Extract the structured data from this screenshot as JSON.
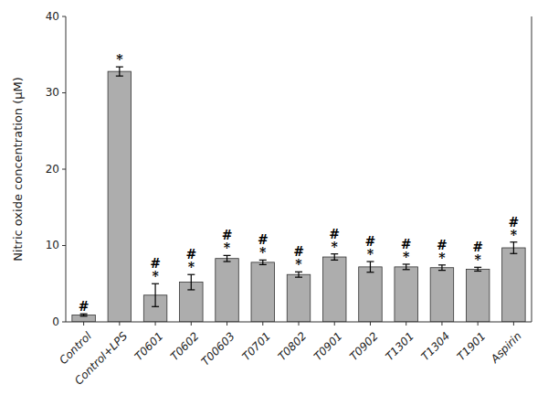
{
  "chart_data": {
    "type": "bar",
    "categories": [
      "Control",
      "Control+LPS",
      "T0601",
      "T0602",
      "T00603",
      "T0701",
      "T0802",
      "T0901",
      "T0902",
      "T1301",
      "T1304",
      "T1901",
      "Aspirin"
    ],
    "values": [
      0.9,
      32.8,
      3.5,
      5.2,
      8.3,
      7.8,
      6.2,
      8.5,
      7.2,
      7.2,
      7.1,
      6.9,
      9.7
    ],
    "errors": [
      0.15,
      0.6,
      1.5,
      1.0,
      0.4,
      0.3,
      0.35,
      0.4,
      0.7,
      0.35,
      0.35,
      0.25,
      0.75
    ],
    "color": "#ADADAD",
    "ylabel": "Nitric oxide concentration (μM)",
    "ylim": [
      0,
      40
    ],
    "yticks": [
      0,
      10,
      20,
      30,
      40
    ],
    "grid": false,
    "annotations": [
      {
        "category": "Control",
        "text": "#"
      },
      {
        "category": "Control+LPS",
        "text": "*"
      },
      {
        "category": "T0601",
        "text": "*"
      },
      {
        "category": "T0601",
        "text": "#"
      },
      {
        "category": "T0602",
        "text": "*"
      },
      {
        "category": "T0602",
        "text": "#"
      },
      {
        "category": "T00603",
        "text": "*"
      },
      {
        "category": "T00603",
        "text": "#"
      },
      {
        "category": "T0701",
        "text": "*"
      },
      {
        "category": "T0701",
        "text": "#"
      },
      {
        "category": "T0802",
        "text": "*"
      },
      {
        "category": "T0802",
        "text": "#"
      },
      {
        "category": "T0901",
        "text": "*"
      },
      {
        "category": "T0901",
        "text": "#"
      },
      {
        "category": "T0902",
        "text": "*"
      },
      {
        "category": "T0902",
        "text": "#"
      },
      {
        "category": "T1301",
        "text": "*"
      },
      {
        "category": "T1301",
        "text": "#"
      },
      {
        "category": "T1304",
        "text": "*"
      },
      {
        "category": "T1304",
        "text": "#"
      },
      {
        "category": "T1901",
        "text": "*"
      },
      {
        "category": "T1901",
        "text": "#"
      },
      {
        "category": "Aspirin",
        "text": "*"
      },
      {
        "category": "Aspirin",
        "text": "#"
      }
    ]
  }
}
